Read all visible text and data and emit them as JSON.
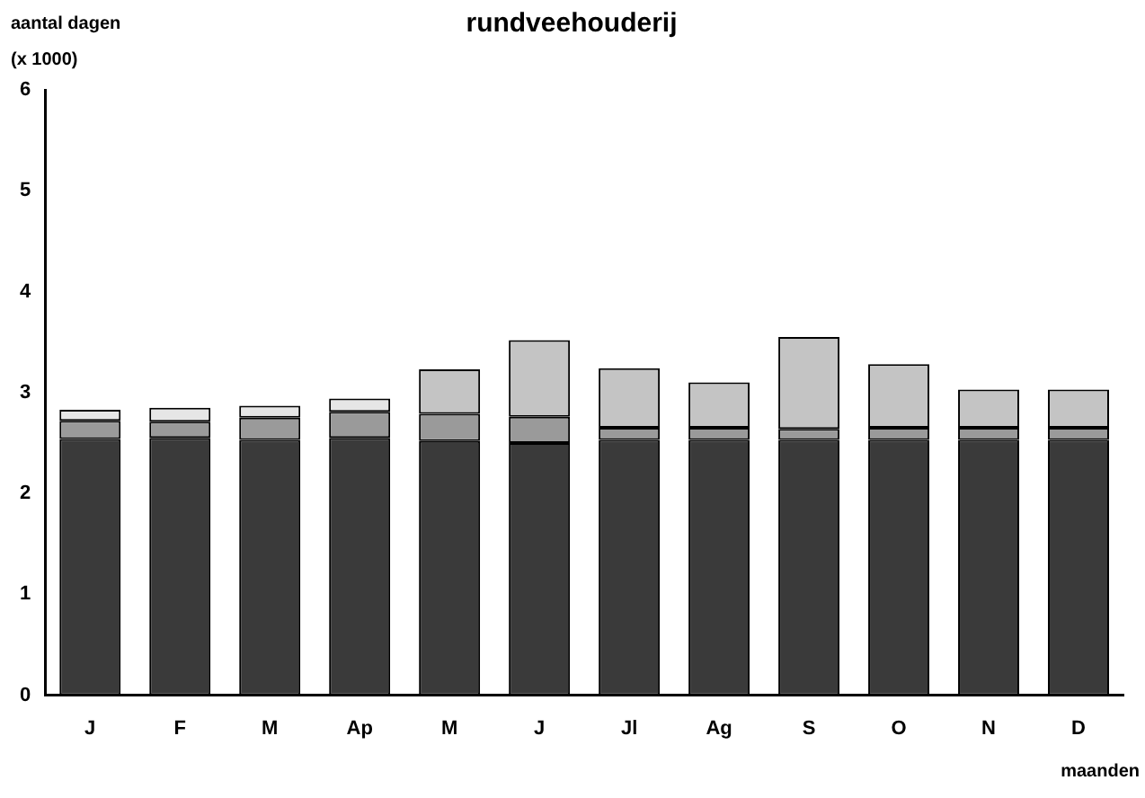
{
  "chart_data": {
    "type": "bar",
    "title": "rundveehouderij",
    "ylabel": "aantal dagen\n(x 1000)",
    "xlabel": "maanden",
    "stacked": true,
    "grid": false,
    "legend": false,
    "categories": [
      "J",
      "F",
      "M",
      "Ap",
      "M",
      "J",
      "Jl",
      "Ag",
      "S",
      "O",
      "N",
      "D"
    ],
    "series": [
      {
        "color": "#3a3a3a",
        "values": [
          2.54,
          2.55,
          2.53,
          2.55,
          2.52,
          2.5,
          2.53,
          2.53,
          2.53,
          2.53,
          2.53,
          2.53
        ]
      },
      {
        "color": "#9a9a9a",
        "values": [
          0.18,
          0.16,
          0.22,
          0.26,
          0.27,
          0.26,
          0.12,
          0.12,
          0.11,
          0.12,
          0.12,
          0.12
        ]
      },
      {
        "color": "#e6e6e6",
        "values": [
          0.11,
          0.14,
          0.12,
          0.13,
          null,
          null,
          null,
          null,
          null,
          null,
          null,
          null
        ]
      },
      {
        "color": "#c4c4c4",
        "values": [
          null,
          null,
          null,
          null,
          0.44,
          0.76,
          0.59,
          0.45,
          0.91,
          0.63,
          0.38,
          0.38
        ]
      }
    ],
    "ylim": [
      0,
      6
    ],
    "yticks": [
      0,
      1,
      2,
      3,
      4,
      5,
      6
    ]
  }
}
